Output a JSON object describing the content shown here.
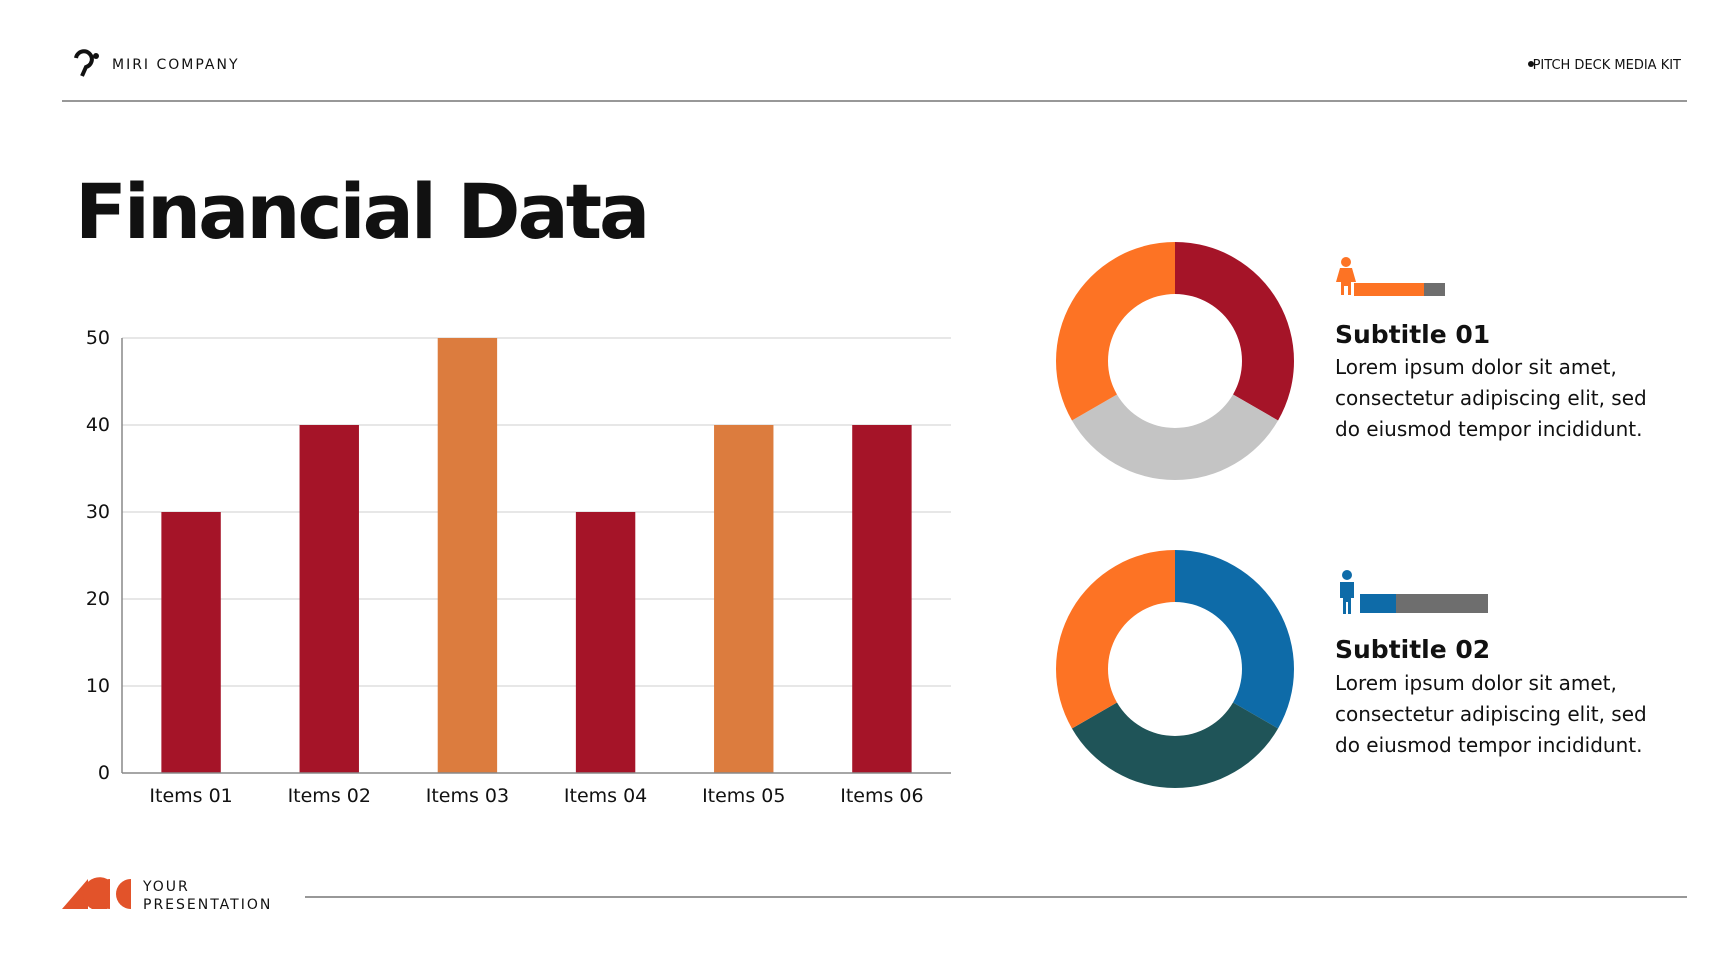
{
  "header": {
    "company": "MIRI COMPANY",
    "tag": "PITCH DECK MEDIA KIT"
  },
  "title": "Financial Data",
  "chart_data": [
    {
      "type": "bar",
      "categories": [
        "Items 01",
        "Items 02",
        "Items 03",
        "Items 04",
        "Items 05",
        "Items 06"
      ],
      "values": [
        30,
        40,
        50,
        30,
        40,
        40
      ],
      "colors": [
        "#a51428",
        "#a51428",
        "#dc7c3e",
        "#a51428",
        "#dc7c3e",
        "#a51428"
      ],
      "ylim": [
        0,
        50
      ],
      "yticks": [
        0,
        10,
        20,
        30,
        40,
        50
      ],
      "grid": true
    },
    {
      "type": "donut",
      "values": [
        1,
        1,
        1
      ],
      "colors": [
        "#a51428",
        "#c4c4c4",
        "#fd7324"
      ]
    },
    {
      "type": "donut",
      "values": [
        1,
        1,
        1
      ],
      "colors": [
        "#0e6ba8",
        "#1f5458",
        "#fd7324"
      ]
    }
  ],
  "panels": [
    {
      "subtitle": "Subtitle 01",
      "lines": [
        "Lorem ipsum dolor sit amet,",
        "consectetur adipiscing elit, sed",
        "do eiusmod tempor incididunt."
      ]
    },
    {
      "subtitle": "Subtitle 02",
      "lines": [
        "Lorem ipsum dolor sit amet,",
        "consectetur adipiscing elit, sed",
        "do eiusmod tempor incididunt."
      ]
    }
  ],
  "footer": {
    "line1": "YOUR",
    "line2": "PRESENTATION"
  }
}
